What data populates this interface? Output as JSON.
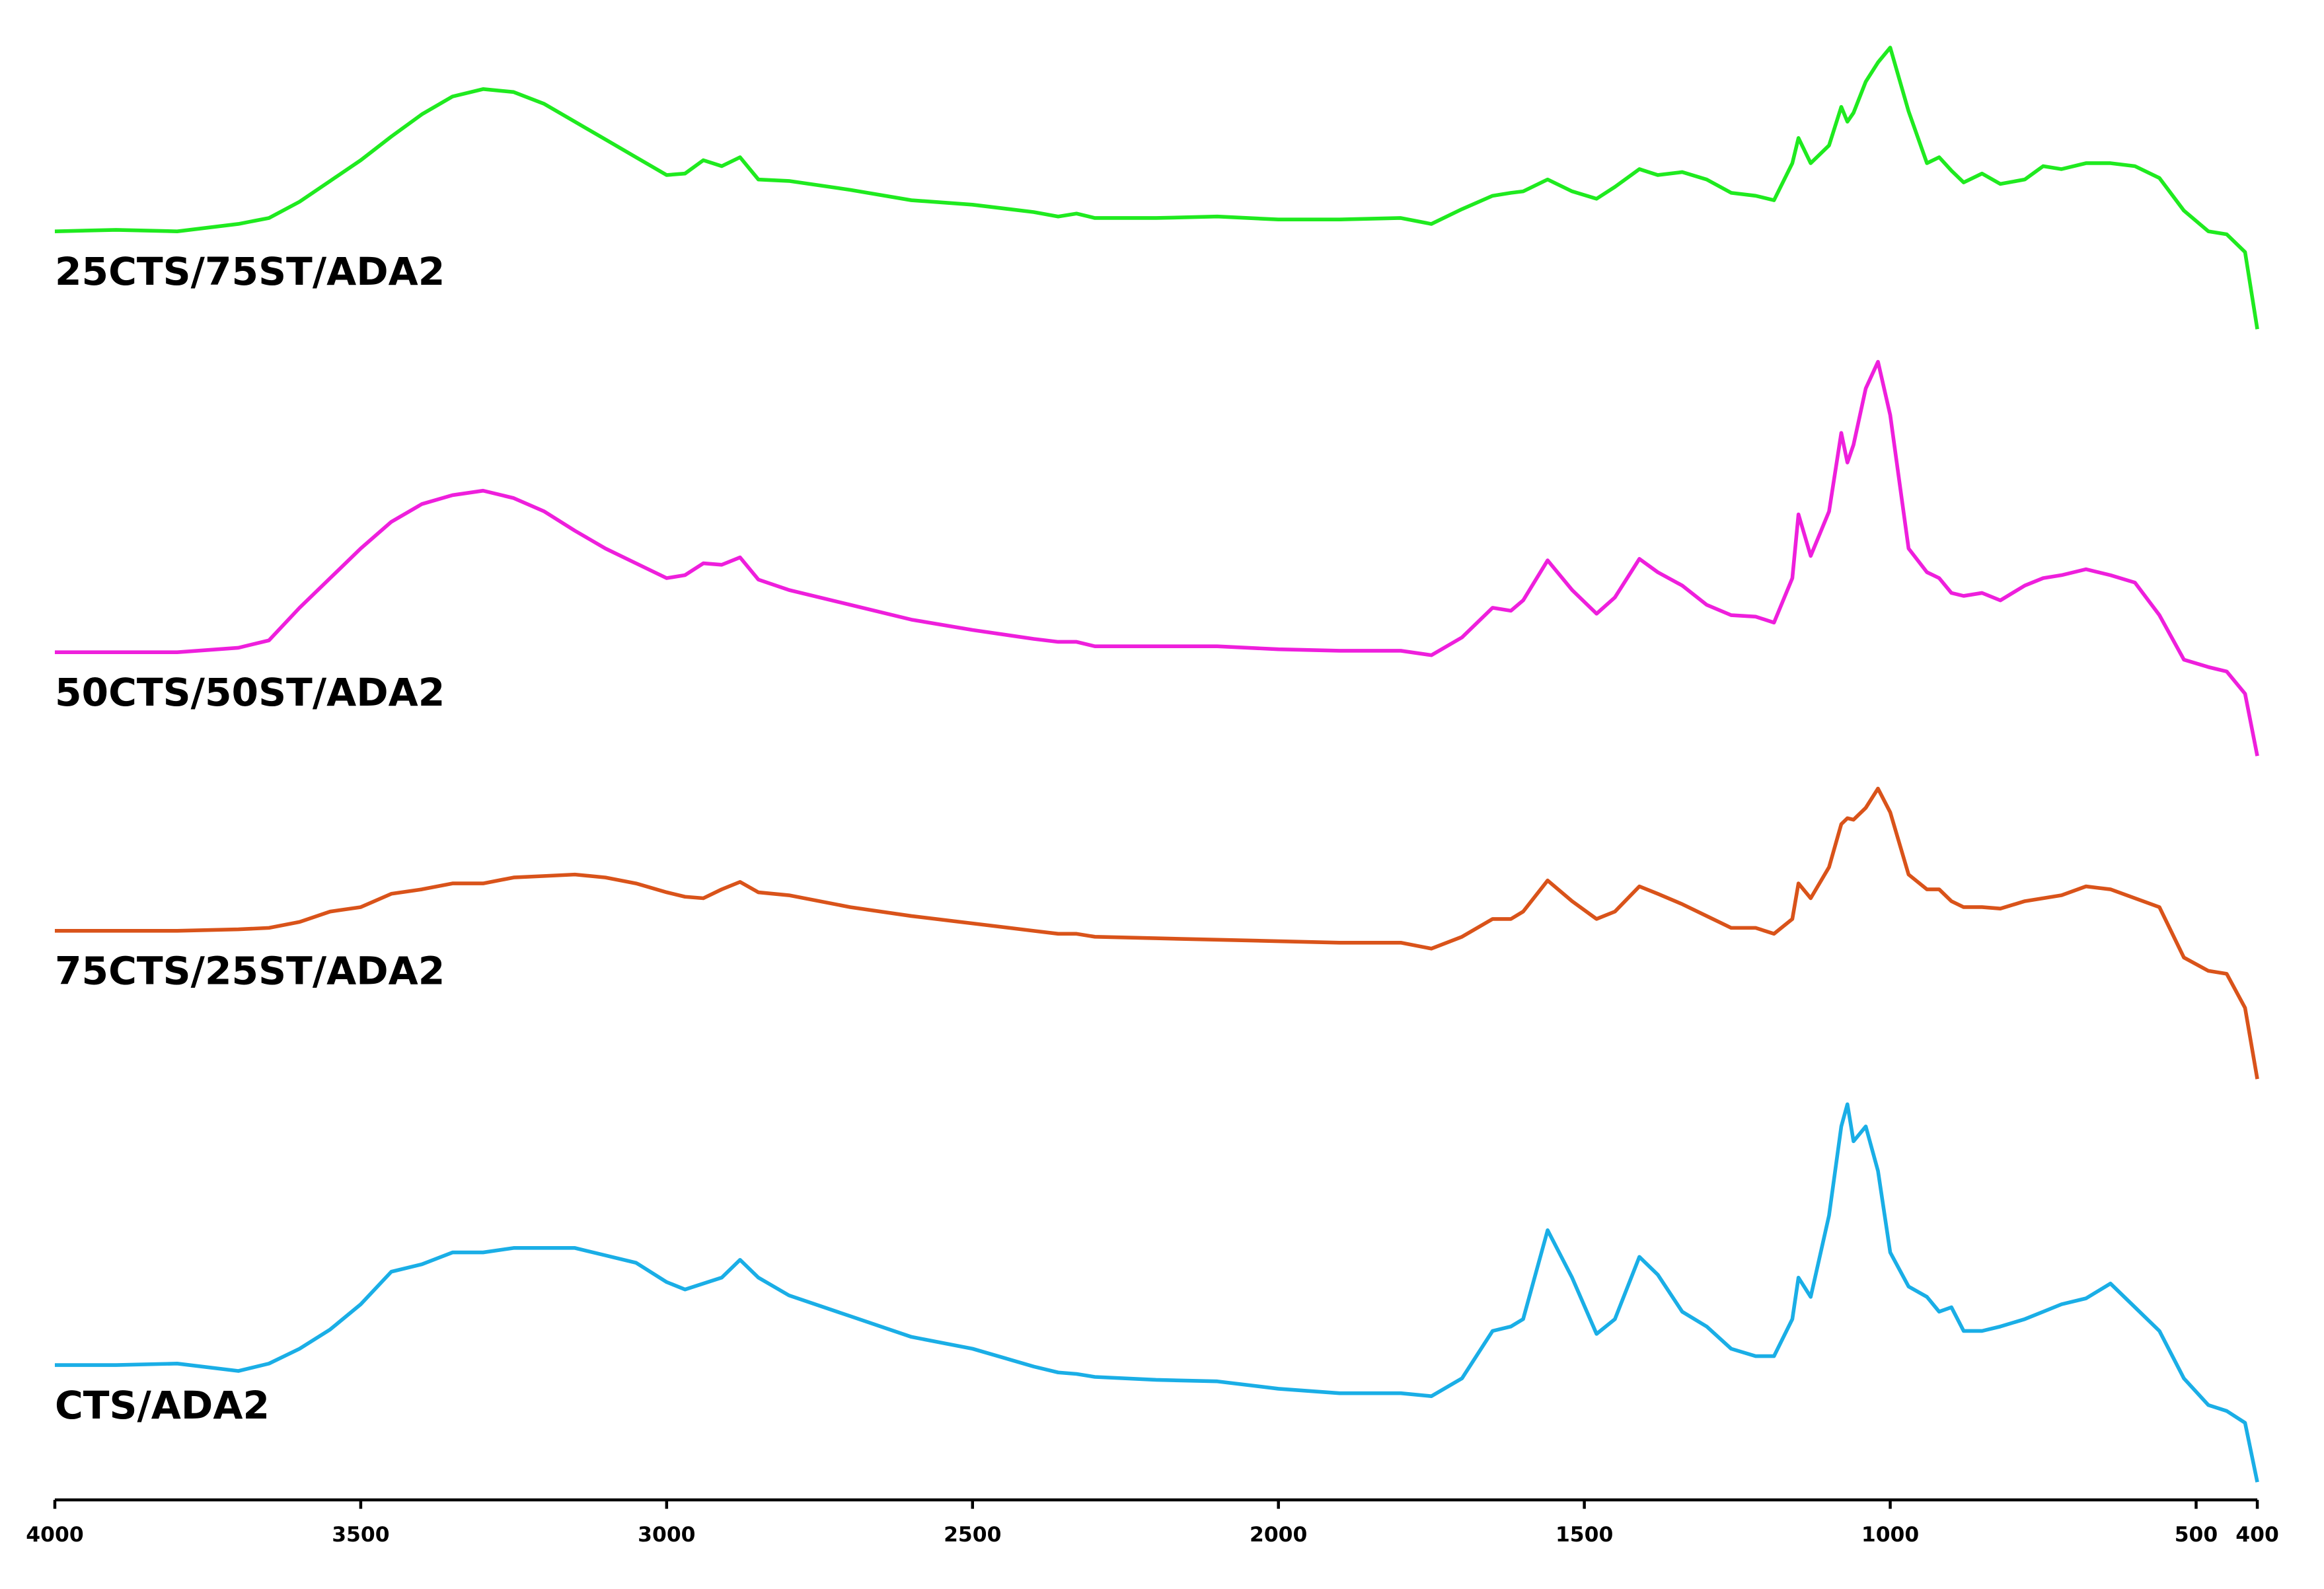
{
  "chart_data": {
    "type": "line",
    "x": [
      4000,
      3900,
      3800,
      3700,
      3650,
      3600,
      3550,
      3500,
      3450,
      3400,
      3350,
      3300,
      3250,
      3200,
      3150,
      3100,
      3050,
      3000,
      2970,
      2940,
      2910,
      2880,
      2850,
      2800,
      2700,
      2600,
      2500,
      2400,
      2360,
      2330,
      2300,
      2200,
      2100,
      2000,
      1900,
      1800,
      1750,
      1700,
      1650,
      1620,
      1600,
      1560,
      1520,
      1480,
      1450,
      1410,
      1380,
      1340,
      1300,
      1260,
      1220,
      1190,
      1160,
      1150,
      1130,
      1100,
      1080,
      1070,
      1060,
      1040,
      1020,
      1000,
      970,
      940,
      920,
      900,
      880,
      850,
      820,
      780,
      750,
      720,
      680,
      640,
      600,
      560,
      520,
      480,
      450,
      420,
      400
    ],
    "xlim": [
      4000,
      400
    ],
    "xticks": [
      4000,
      3500,
      3000,
      2500,
      2000,
      1500,
      1000,
      500,
      400
    ],
    "ylim": [
      0,
      100
    ],
    "series": [
      {
        "name": "25CTS/75ST/ADA2",
        "color": "#1fea1f",
        "values": [
          85.6,
          85.7,
          85.6,
          86.1,
          86.5,
          87.6,
          89,
          90.4,
          92,
          93.5,
          94.7,
          95.2,
          95,
          94.2,
          93,
          91.8,
          90.6,
          89.4,
          89.5,
          90.4,
          90,
          90.6,
          89.1,
          89,
          88.4,
          87.7,
          87.4,
          86.9,
          86.6,
          86.8,
          86.5,
          86.5,
          86.6,
          86.4,
          86.4,
          86.5,
          86.1,
          87.1,
          88,
          88.2,
          88.3,
          89.1,
          88.3,
          87.8,
          88.6,
          89.8,
          89.4,
          89.6,
          89.1,
          88.2,
          88,
          87.7,
          90.2,
          91.9,
          90.2,
          91.4,
          94,
          93,
          93.6,
          95.7,
          97,
          98,
          93.7,
          90.2,
          90.6,
          89.7,
          88.9,
          89.5,
          88.8,
          89.1,
          90,
          89.8,
          90.2,
          90.2,
          90,
          89.2,
          87,
          85.6,
          85.4,
          84.2,
          79
        ]
      },
      {
        "name": "50CTS/50ST/ADA2",
        "color": "#ee1fdc",
        "values": [
          57.2,
          57.2,
          57.2,
          57.5,
          58,
          60.2,
          62.2,
          64.2,
          66,
          67.2,
          67.8,
          68.1,
          67.6,
          66.7,
          65.4,
          64.2,
          63.2,
          62.2,
          62.4,
          63.2,
          63.1,
          63.6,
          62.1,
          61.4,
          60.4,
          59.4,
          58.7,
          58.1,
          57.9,
          57.9,
          57.6,
          57.6,
          57.6,
          57.4,
          57.3,
          57.3,
          57,
          58.2,
          60.2,
          60,
          60.7,
          63.4,
          61.4,
          59.8,
          60.9,
          63.5,
          62.6,
          61.7,
          60.4,
          59.7,
          59.6,
          59.2,
          62.2,
          66.5,
          63.7,
          66.7,
          72,
          70,
          71.2,
          75,
          76.8,
          73.2,
          64.2,
          62.6,
          62.2,
          61.2,
          61,
          61.2,
          60.7,
          61.7,
          62.2,
          62.4,
          62.8,
          62.4,
          61.9,
          59.7,
          56.7,
          56.2,
          55.9,
          54.4,
          50.2
        ]
      },
      {
        "name": "75CTS/25ST/ADA2",
        "color": "#d9531a",
        "values": [
          38.4,
          38.4,
          38.4,
          38.5,
          38.6,
          39,
          39.7,
          40,
          40.9,
          41.2,
          41.6,
          41.6,
          42,
          42.1,
          42.2,
          42,
          41.6,
          41,
          40.7,
          40.6,
          41.2,
          41.7,
          41,
          40.8,
          40,
          39.4,
          38.9,
          38.4,
          38.2,
          38.2,
          38,
          37.9,
          37.8,
          37.7,
          37.6,
          37.6,
          37.2,
          38,
          39.2,
          39.2,
          39.7,
          41.8,
          40.4,
          39.2,
          39.7,
          41.4,
          40.9,
          40.2,
          39.4,
          38.6,
          38.6,
          38.2,
          39.2,
          41.6,
          40.6,
          42.7,
          45.6,
          46,
          45.9,
          46.7,
          48,
          46.4,
          42.2,
          41.2,
          41.2,
          40.4,
          40,
          40,
          39.9,
          40.4,
          40.6,
          40.8,
          41.4,
          41.2,
          40.6,
          40,
          36.6,
          35.7,
          35.5,
          33.2,
          28.4
        ]
      },
      {
        "name": "CTS/ADA2",
        "color": "#1aaee6",
        "values": [
          9.1,
          9.1,
          9.2,
          8.7,
          9.2,
          10.2,
          11.5,
          13.2,
          15.4,
          15.9,
          16.7,
          16.7,
          17,
          17,
          17,
          16.5,
          16,
          14.7,
          14.2,
          14.6,
          15,
          16.2,
          15,
          13.8,
          12.4,
          11,
          10.2,
          9,
          8.6,
          8.5,
          8.3,
          8.1,
          8,
          7.5,
          7.2,
          7.2,
          7,
          8.2,
          11.4,
          11.7,
          12.2,
          18.2,
          15,
          11.2,
          12.2,
          16.4,
          15.2,
          12.7,
          11.7,
          10.2,
          9.7,
          9.7,
          12.2,
          15,
          13.7,
          19.2,
          25.2,
          26.7,
          24.2,
          25.2,
          22.2,
          16.7,
          14.4,
          13.7,
          12.7,
          13,
          11.4,
          11.4,
          11.7,
          12.2,
          12.7,
          13.2,
          13.6,
          14.6,
          13,
          11.4,
          8.2,
          6.4,
          6,
          5.2,
          1.2
        ]
      }
    ]
  }
}
